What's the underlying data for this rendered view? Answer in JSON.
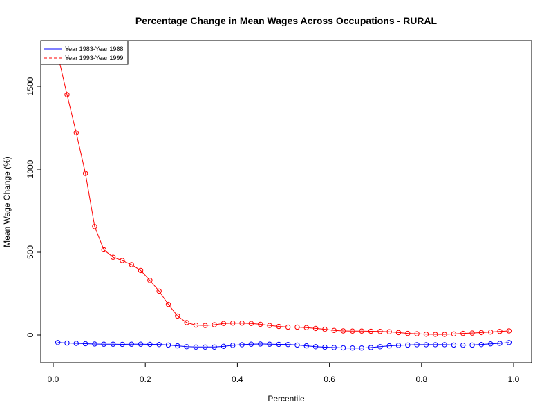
{
  "chart_data": {
    "type": "line",
    "title": "Percentage Change in Mean Wages  Across Occupations - RURAL",
    "xlabel": "Percentile",
    "ylabel": "Mean Wage Change (%)",
    "xlim": [
      0,
      1.0
    ],
    "ylim": [
      -160,
      1760
    ],
    "x_ticks": [
      "0.0",
      "0.2",
      "0.4",
      "0.6",
      "0.8",
      "1.0"
    ],
    "y_ticks": [
      "0",
      "500",
      "1000",
      "1500"
    ],
    "grid": false,
    "legend_position": "top-left",
    "x": [
      0.01,
      0.03,
      0.05,
      0.07,
      0.09,
      0.11,
      0.13,
      0.15,
      0.17,
      0.19,
      0.21,
      0.23,
      0.25,
      0.27,
      0.29,
      0.31,
      0.33,
      0.35,
      0.37,
      0.39,
      0.41,
      0.43,
      0.45,
      0.47,
      0.49,
      0.51,
      0.53,
      0.55,
      0.57,
      0.59,
      0.61,
      0.63,
      0.65,
      0.67,
      0.69,
      0.71,
      0.73,
      0.75,
      0.77,
      0.79,
      0.81,
      0.83,
      0.85,
      0.87,
      0.89,
      0.91,
      0.93,
      0.95,
      0.97,
      0.99
    ],
    "series": [
      {
        "name": "Year 1983-Year 1988",
        "color": "#0000ff",
        "line_style": "solid",
        "marker": "circle",
        "values": [
          -45,
          -48,
          -50,
          -52,
          -54,
          -55,
          -55,
          -56,
          -55,
          -55,
          -56,
          -57,
          -60,
          -65,
          -70,
          -72,
          -72,
          -72,
          -68,
          -62,
          -58,
          -55,
          -54,
          -55,
          -56,
          -57,
          -60,
          -65,
          -70,
          -73,
          -75,
          -77,
          -78,
          -78,
          -75,
          -70,
          -65,
          -62,
          -60,
          -58,
          -58,
          -58,
          -58,
          -60,
          -61,
          -60,
          -57,
          -53,
          -50,
          -45
        ]
      },
      {
        "name": "Year 1993-Year 1999",
        "color": "#ff0000",
        "line_style": "dashed",
        "marker": "circle",
        "values": [
          1690,
          1450,
          1220,
          975,
          655,
          515,
          470,
          450,
          425,
          390,
          330,
          265,
          185,
          115,
          75,
          60,
          58,
          62,
          70,
          72,
          72,
          70,
          65,
          58,
          52,
          48,
          48,
          45,
          40,
          35,
          28,
          25,
          24,
          24,
          23,
          22,
          20,
          15,
          10,
          8,
          5,
          4,
          4,
          7,
          10,
          12,
          15,
          18,
          22,
          25
        ]
      }
    ]
  }
}
